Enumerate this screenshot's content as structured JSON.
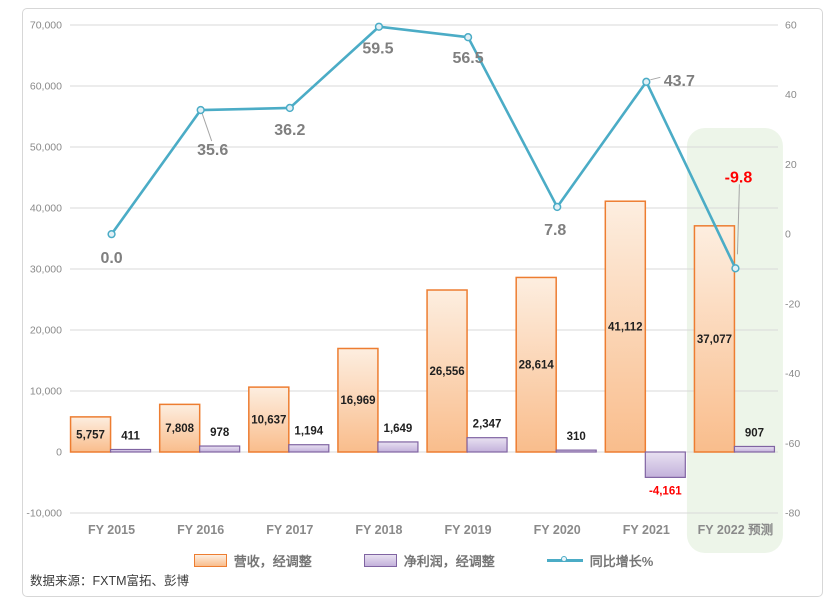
{
  "source_note": "数据来源：FXTM富拓、彭博",
  "legend": {
    "items": [
      {
        "id": "revenue",
        "label": "营收，经调整",
        "swatch": "bar-orange"
      },
      {
        "id": "netprofit",
        "label": "净利润，经调整",
        "swatch": "bar-purple"
      },
      {
        "id": "growth",
        "label": "同比增长%",
        "swatch": "line-teal"
      }
    ]
  },
  "chart_data": {
    "type": "bar+line",
    "title": "",
    "categories": [
      "FY 2015",
      "FY 2016",
      "FY 2017",
      "FY 2018",
      "FY 2019",
      "FY 2020",
      "FY 2021",
      "FY 2022 预测"
    ],
    "series": [
      {
        "name": "营收，经调整",
        "type": "bar",
        "axis": "left",
        "values": [
          5757,
          7808,
          10637,
          16969,
          26556,
          28614,
          41112,
          37077
        ],
        "labels": [
          "5,757",
          "7,808",
          "10,637",
          "16,969",
          "26,556",
          "28,614",
          "41,112",
          "37,077"
        ]
      },
      {
        "name": "净利润，经调整",
        "type": "bar",
        "axis": "left",
        "values": [
          411,
          978,
          1194,
          1649,
          2347,
          310,
          -4161,
          907
        ],
        "labels": [
          "411",
          "978",
          "1,194",
          "1,649",
          "2,347",
          "310",
          "-4,161",
          "907"
        ]
      },
      {
        "name": "同比增长%",
        "type": "line",
        "axis": "right",
        "values": [
          0.0,
          35.6,
          36.2,
          59.5,
          56.5,
          7.8,
          43.7,
          -9.8
        ],
        "labels": [
          "0.0",
          "35.6",
          "36.2",
          "59.5",
          "56.5",
          "7.8",
          "43.7",
          "-9.8"
        ]
      }
    ],
    "left_axis": {
      "min": -10000,
      "max": 70000,
      "tick_values": [
        70000,
        60000,
        50000,
        40000,
        30000,
        20000,
        10000,
        0,
        -10000
      ],
      "tick_labels": [
        "70,000",
        "60,000",
        "50,000",
        "40,000",
        "30,000",
        "20,000",
        "10,000",
        "0",
        "-10,000"
      ]
    },
    "right_axis": {
      "min": -80,
      "max": 60,
      "tick_values": [
        60,
        40,
        20,
        0,
        -20,
        -40,
        -60,
        -80
      ],
      "tick_labels": [
        "60",
        "40",
        "20",
        "0",
        "-20",
        "-40",
        "-60",
        "-80"
      ]
    },
    "grid": true,
    "legend_position": "bottom",
    "highlight": {
      "category_index": 7,
      "label": "FY 2022 预测"
    },
    "colors": {
      "revenue_fill_top": "#FDEEE0",
      "revenue_fill_bottom": "#F9BD8C",
      "revenue_stroke": "#ED7D31",
      "net_fill_top": "#E8E1F1",
      "net_fill_bottom": "#C3B1DB",
      "net_stroke": "#8064A2",
      "line": "#4BACC6",
      "marker_fill": "#E2F0F6",
      "gridline": "#D9D9D9",
      "axis_text": "#8A8A8A",
      "category_text": "#8A8A8A",
      "bar_label": "#1F1F1F",
      "line_label": "#7F7F7F",
      "negative_label": "#FF0000",
      "leader_line": "#A6A6A6",
      "highlight_bg": "#EDF5E9",
      "frame_border": "#D7D7D7"
    }
  }
}
